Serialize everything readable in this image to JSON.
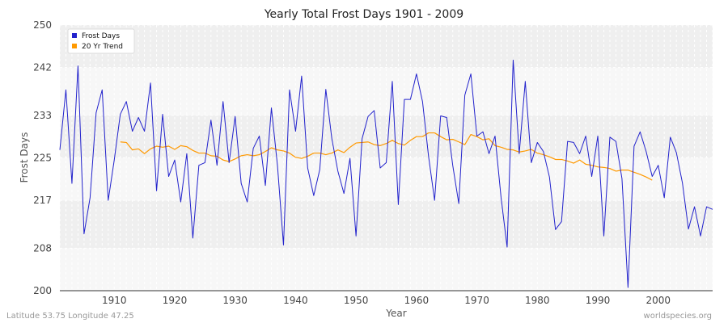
{
  "chart_data": {
    "type": "line",
    "title": "Yearly Total Frost Days 1901 - 2009",
    "xlabel": "Year",
    "ylabel": "Frost Days",
    "xlim": [
      1901,
      2009
    ],
    "ylim": [
      200,
      250
    ],
    "yticks": [
      200,
      208,
      217,
      225,
      233,
      242,
      250
    ],
    "xticks": [
      1910,
      1920,
      1930,
      1940,
      1950,
      1960,
      1970,
      1980,
      1990,
      2000
    ],
    "legend_position": "top-left",
    "series": [
      {
        "name": "Frost Days",
        "color": "#2222cc",
        "x": [
          1901,
          1902,
          1903,
          1904,
          1905,
          1906,
          1907,
          1908,
          1909,
          1910,
          1911,
          1912,
          1913,
          1914,
          1915,
          1916,
          1917,
          1918,
          1919,
          1920,
          1921,
          1922,
          1923,
          1924,
          1925,
          1926,
          1927,
          1928,
          1929,
          1930,
          1931,
          1932,
          1933,
          1934,
          1935,
          1936,
          1937,
          1938,
          1939,
          1940,
          1941,
          1942,
          1943,
          1944,
          1945,
          1946,
          1947,
          1948,
          1949,
          1950,
          1951,
          1952,
          1953,
          1954,
          1955,
          1956,
          1957,
          1958,
          1959,
          1960,
          1961,
          1962,
          1963,
          1964,
          1965,
          1966,
          1967,
          1968,
          1969,
          1970,
          1971,
          1972,
          1973,
          1974,
          1975,
          1976,
          1977,
          1978,
          1979,
          1980,
          1981,
          1982,
          1983,
          1984,
          1985,
          1986,
          1987,
          1988,
          1989,
          1990,
          1991,
          1992,
          1993,
          1994,
          1995,
          1996,
          1997,
          1998,
          1999,
          2000,
          2001,
          2002,
          2003,
          2004,
          2005,
          2006,
          2007,
          2008,
          2009
        ],
        "values": [
          226.5,
          237.8,
          220.2,
          242.3,
          210.7,
          217.5,
          233.5,
          237.8,
          217.0,
          224.6,
          233.2,
          235.6,
          230.0,
          232.6,
          230.0,
          239.1,
          218.8,
          233.2,
          221.5,
          224.6,
          216.7,
          225.8,
          209.9,
          223.6,
          224.1,
          232.1,
          223.6,
          235.6,
          224.1,
          232.8,
          220.2,
          216.7,
          226.8,
          229.1,
          219.8,
          234.4,
          223.6,
          208.6,
          237.8,
          230.0,
          240.4,
          223.1,
          217.9,
          222.8,
          237.9,
          228.6,
          222.5,
          218.3,
          224.9,
          210.3,
          228.6,
          232.8,
          233.9,
          223.1,
          224.1,
          239.4,
          216.2,
          236.0,
          236.0,
          240.8,
          235.6,
          225.3,
          217.0,
          232.9,
          232.6,
          223.6,
          216.4,
          236.8,
          240.8,
          229.1,
          229.9,
          225.8,
          229.1,
          217.5,
          208.2,
          243.4,
          225.8,
          239.4,
          224.1,
          227.9,
          226.2,
          221.4,
          211.5,
          213.0,
          228.1,
          227.9,
          225.8,
          229.1,
          221.5,
          229.1,
          210.3,
          228.9,
          228.1,
          221.1,
          200.6,
          227.2,
          229.9,
          226.2,
          221.5,
          223.6,
          217.5,
          228.9,
          226.0,
          220.3,
          211.6,
          215.8,
          210.3,
          215.8,
          215.3
        ]
      },
      {
        "name": "20 Yr Trend",
        "color": "#ff9900",
        "x": [
          1911,
          1912,
          1913,
          1914,
          1915,
          1916,
          1917,
          1918,
          1919,
          1920,
          1921,
          1922,
          1923,
          1924,
          1925,
          1926,
          1927,
          1928,
          1929,
          1930,
          1931,
          1932,
          1933,
          1934,
          1935,
          1936,
          1937,
          1938,
          1939,
          1940,
          1941,
          1942,
          1943,
          1944,
          1945,
          1946,
          1947,
          1948,
          1949,
          1950,
          1951,
          1952,
          1953,
          1954,
          1955,
          1956,
          1957,
          1958,
          1959,
          1960,
          1961,
          1962,
          1963,
          1964,
          1965,
          1966,
          1967,
          1968,
          1969,
          1970,
          1971,
          1972,
          1973,
          1974,
          1975,
          1976,
          1977,
          1978,
          1979,
          1980,
          1981,
          1982,
          1983,
          1984,
          1985,
          1986,
          1987,
          1988,
          1989,
          1990,
          1991,
          1992,
          1993,
          1994,
          1995,
          1996,
          1997,
          1998,
          1999
        ],
        "values": [
          228.0,
          227.9,
          226.5,
          226.7,
          225.8,
          226.7,
          227.2,
          227.0,
          227.2,
          226.6,
          227.3,
          227.1,
          226.4,
          225.9,
          225.9,
          225.4,
          225.3,
          224.6,
          224.3,
          224.8,
          225.4,
          225.6,
          225.4,
          225.6,
          226.2,
          226.9,
          226.5,
          226.3,
          225.9,
          225.1,
          224.9,
          225.3,
          225.9,
          225.9,
          225.6,
          225.9,
          226.5,
          226.0,
          227.0,
          227.8,
          227.9,
          228.0,
          227.5,
          227.3,
          227.7,
          228.3,
          227.7,
          227.4,
          228.3,
          229.0,
          229.0,
          229.7,
          229.7,
          229.0,
          228.4,
          228.5,
          228.0,
          227.5,
          229.4,
          229.0,
          228.4,
          228.6,
          227.3,
          227.0,
          226.6,
          226.5,
          226.1,
          226.3,
          226.6,
          225.9,
          225.6,
          225.2,
          224.7,
          224.7,
          224.4,
          224.0,
          224.6,
          223.8,
          223.6,
          223.3,
          223.2,
          223.0,
          222.5,
          222.7,
          222.7,
          222.3,
          221.9,
          221.4,
          220.8
        ]
      }
    ]
  },
  "footer": {
    "location": "Latitude 53.75 Longitude 47.25",
    "source": "worldspecies.org"
  }
}
